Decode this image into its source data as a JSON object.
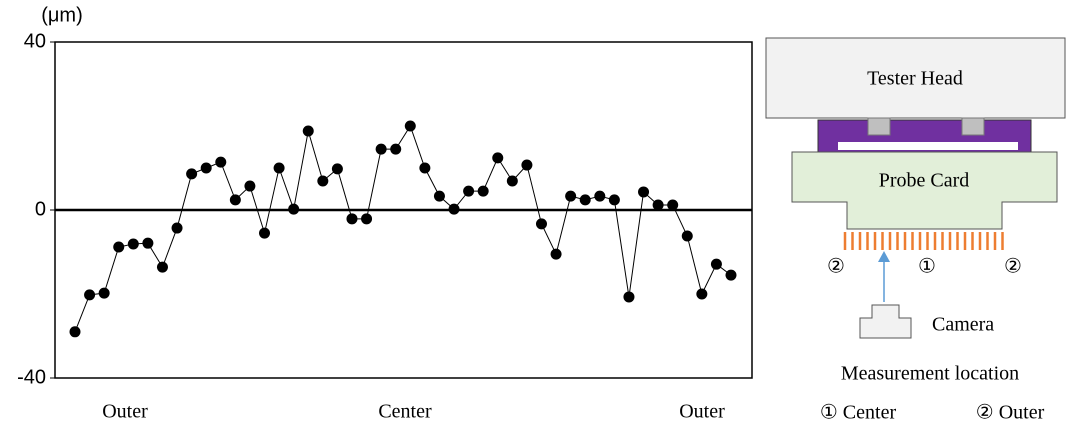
{
  "chart_data": {
    "type": "line",
    "y_label": "(μm)",
    "values": [
      -29,
      -20.2,
      -19.8,
      -8.8,
      -8.1,
      -7.9,
      -13.6,
      -4.3,
      8.6,
      10,
      11.4,
      2.4,
      5.7,
      -5.5,
      10,
      0.2,
      18.8,
      6.9,
      9.8,
      -2.1,
      -2.1,
      14.5,
      14.5,
      20,
      10,
      3.3,
      0.2,
      4.5,
      4.5,
      12.4,
      6.9,
      10.7,
      -3.3,
      -10.5,
      3.3,
      2.4,
      3.3,
      2.4,
      -20.7,
      4.3,
      1.2,
      1.2,
      -6.2,
      -20,
      -12.9,
      -15.5
    ],
    "color": "#000000",
    "x_labels": [
      "Outer",
      "Center",
      "Outer"
    ],
    "ylim": [
      -40,
      40
    ],
    "yticks": [
      -40,
      0,
      40
    ]
  },
  "diagram": {
    "tester_head": "Tester Head",
    "probe_card": "Probe Card",
    "marks": [
      "②",
      "①",
      "②"
    ],
    "camera": "Camera",
    "caption": "Measurement location",
    "legend": [
      "① Center",
      "② Outer"
    ]
  }
}
